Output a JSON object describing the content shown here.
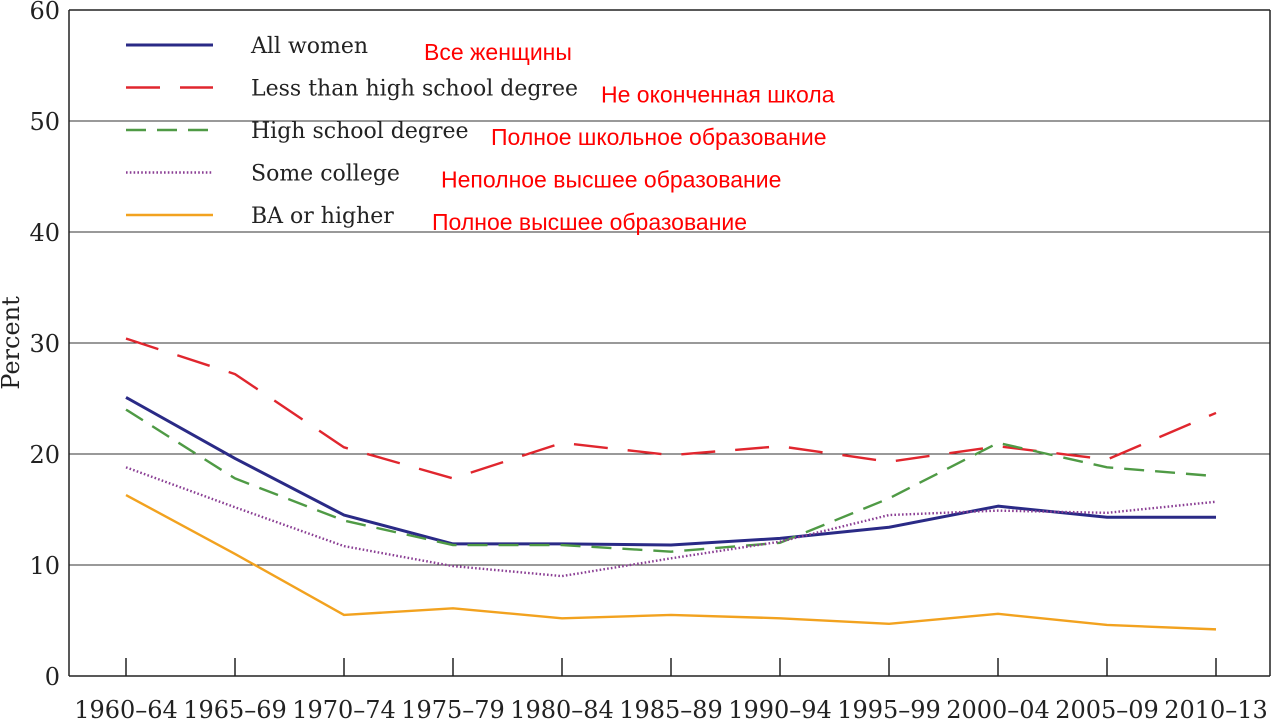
{
  "chart_data": {
    "type": "line",
    "title": "",
    "xlabel": "",
    "ylabel": "Percent",
    "ylim": [
      0,
      60
    ],
    "yticks": [
      0,
      10,
      20,
      30,
      40,
      50,
      60
    ],
    "categories": [
      "1960–64",
      "1965–69",
      "1970–74",
      "1975–79",
      "1980–84",
      "1985–89",
      "1990–94",
      "1995–99",
      "2000–04",
      "2005–09",
      "2010–13"
    ],
    "grid": "horizontal",
    "legend_position": "top-left",
    "series": [
      {
        "name": "All women",
        "translation": "Все женщины",
        "color": "#2a2a86",
        "style": "solid",
        "values": [
          25.1,
          19.6,
          14.5,
          11.9,
          11.9,
          11.8,
          12.4,
          13.4,
          15.3,
          14.3,
          14.3
        ]
      },
      {
        "name": "Less than high school degree",
        "translation": "Не оконченная школа",
        "color": "#e0262e",
        "style": "long-dash",
        "values": [
          30.4,
          27.2,
          20.6,
          17.8,
          21.0,
          19.9,
          20.7,
          19.3,
          20.7,
          19.5,
          23.7
        ]
      },
      {
        "name": "High school degree",
        "translation": "Полное школьное образование",
        "color": "#4f9a45",
        "style": "dash",
        "values": [
          24.0,
          17.8,
          14.0,
          11.8,
          11.8,
          11.2,
          12.0,
          16.0,
          21.0,
          18.8,
          18.0
        ]
      },
      {
        "name": "Some college",
        "translation": "Неполное высшее образование",
        "color": "#8a3e94",
        "style": "dotted",
        "values": [
          18.8,
          15.2,
          11.7,
          9.9,
          9.0,
          10.6,
          12.1,
          14.5,
          14.9,
          14.7,
          15.7
        ]
      },
      {
        "name": "BA or higher",
        "translation": "Полное высшее образование",
        "color": "#f2a21f",
        "style": "solid",
        "values": [
          16.3,
          11.0,
          5.5,
          6.1,
          5.2,
          5.5,
          5.2,
          4.7,
          5.6,
          4.6,
          4.2
        ]
      }
    ]
  }
}
